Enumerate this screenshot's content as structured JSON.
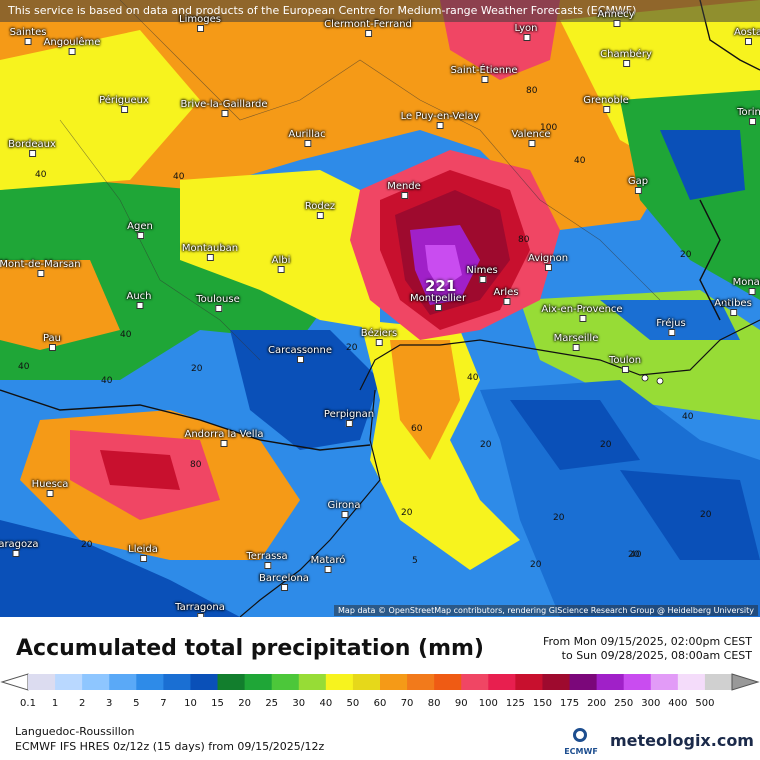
{
  "banner": "This service is based on data and products of the European Centre for Medium-range Weather Forecasts (ECMWF)",
  "title": "Accumulated total precipitation (mm)",
  "period_from": "From Mon 09/15/2025, 02:00pm CEST",
  "period_to": "to Sun 09/28/2025, 08:00am CEST",
  "region": "Languedoc-Roussillon",
  "model_info": "ECMWF IFS HRES 0z/12z (15 days) from  09/15/2025/12z",
  "brand": "meteologix.com",
  "ecmwf_label": "ECMWF",
  "attribution": "Map data © OpenStreetMap contributors, rendering GIScience Research Group @ Heidelberg University",
  "max_value": "221",
  "legend": {
    "labels": [
      "0.1",
      "1",
      "2",
      "3",
      "5",
      "7",
      "10",
      "15",
      "20",
      "25",
      "30",
      "40",
      "50",
      "60",
      "70",
      "80",
      "90",
      "100",
      "125",
      "150",
      "175",
      "200",
      "250",
      "300",
      "400",
      "500"
    ],
    "colors": [
      "#dcdcf0",
      "#b9d8ff",
      "#8ec6ff",
      "#5aa9f7",
      "#2e8be8",
      "#1a6fd3",
      "#0a50b8",
      "#127e2d",
      "#1fa637",
      "#4cc73a",
      "#97dc36",
      "#f7f31e",
      "#e6d81a",
      "#f59a17",
      "#f27a1b",
      "#ef5b14",
      "#f04664",
      "#e81f4f",
      "#c8102e",
      "#9e0a2e",
      "#7b077a",
      "#a020c8",
      "#c94cf0",
      "#e29bf7",
      "#f4dcfa",
      "#d0d0d0"
    ]
  },
  "cities": [
    {
      "name": "Saintes"
    },
    {
      "name": "Angoulême"
    },
    {
      "name": "Limoges"
    },
    {
      "name": "Clermont-Ferrand"
    },
    {
      "name": "Lyon"
    },
    {
      "name": "Annecy"
    },
    {
      "name": "Saint-Étienne"
    },
    {
      "name": "Chambéry"
    },
    {
      "name": "Périgueux"
    },
    {
      "name": "Brive-la-Gaillarde"
    },
    {
      "name": "Le Puy-en-Velay"
    },
    {
      "name": "Grenoble"
    },
    {
      "name": "Bordeaux"
    },
    {
      "name": "Aurillac"
    },
    {
      "name": "Valence"
    },
    {
      "name": "Mende"
    },
    {
      "name": "Gap"
    },
    {
      "name": "Rodez"
    },
    {
      "name": "Agen"
    },
    {
      "name": "Montauban"
    },
    {
      "name": "Albi"
    },
    {
      "name": "Nimes"
    },
    {
      "name": "Avignon"
    },
    {
      "name": "Mont-de-Marsan"
    },
    {
      "name": "Montpellier"
    },
    {
      "name": "Arles"
    },
    {
      "name": "Auch"
    },
    {
      "name": "Toulouse"
    },
    {
      "name": "Aix-en-Provence"
    },
    {
      "name": "Antibes"
    },
    {
      "name": "Béziers"
    },
    {
      "name": "Fréjus"
    },
    {
      "name": "Pau"
    },
    {
      "name": "Carcassonne"
    },
    {
      "name": "Marseille"
    },
    {
      "name": "Toulon"
    },
    {
      "name": "Perpignan"
    },
    {
      "name": "Andorra la Vella"
    },
    {
      "name": "Huesca"
    },
    {
      "name": "Girona"
    },
    {
      "name": "Lleida"
    },
    {
      "name": "Terrassa"
    },
    {
      "name": "Mataró"
    },
    {
      "name": "Barcelona"
    },
    {
      "name": "Tarragona"
    },
    {
      "name": "Aosta"
    },
    {
      "name": "Monaco"
    },
    {
      "name": "Torino"
    },
    {
      "name": "Zaragoza"
    }
  ],
  "contour_labels": [
    "40",
    "40",
    "40",
    "80",
    "100",
    "40",
    "20",
    "20",
    "80",
    "80",
    "40",
    "40",
    "60",
    "20",
    "20",
    "20",
    "5",
    "20",
    "40",
    "40",
    "20",
    "20",
    "20",
    "20",
    "40",
    "20",
    "20"
  ]
}
